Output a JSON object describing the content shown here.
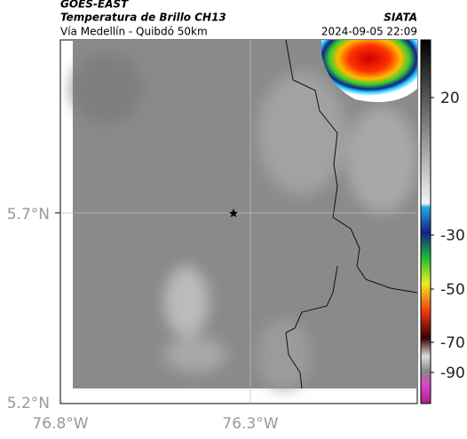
{
  "header": {
    "source": "GOES-EAST",
    "title": "Temperatura de Brillo CH13",
    "org": "SIATA",
    "subtitle": "Vía Medellín - Quibdó 50km",
    "datetime": "2024-09-05 22:09"
  },
  "axes": {
    "lat_labels": [
      "5.7°N",
      "5.2°N"
    ],
    "lon_labels": [
      "76.8°W",
      "76.3°W"
    ]
  },
  "colorbar": {
    "ticks": [
      20,
      -30,
      -50,
      -70,
      -90
    ]
  }
}
